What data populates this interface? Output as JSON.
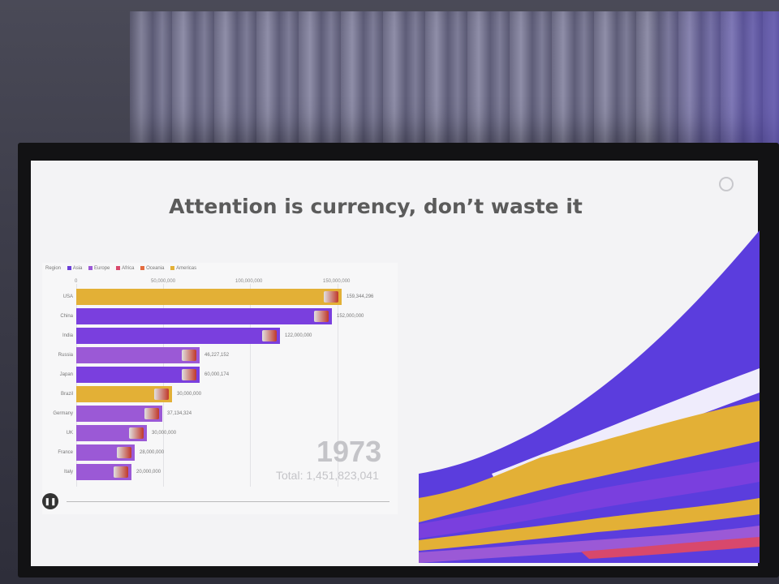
{
  "slide": {
    "title": "Attention is currency, don’t waste it"
  },
  "legend": {
    "label": "Region",
    "items": [
      {
        "name": "Asia",
        "color": "#6a3fd8"
      },
      {
        "name": "Europe",
        "color": "#9b59d6"
      },
      {
        "name": "Africa",
        "color": "#d8486c"
      },
      {
        "name": "Oceania",
        "color": "#e46b3e"
      },
      {
        "name": "Americas",
        "color": "#e3b036"
      }
    ]
  },
  "axis_ticks": [
    "0",
    "50,000,000",
    "100,000,000",
    "150,000,000"
  ],
  "countries": [
    {
      "name": "USA",
      "value": "159,344,296",
      "color": "#e3b036",
      "fraction": 0.86,
      "flag": "us-flag"
    },
    {
      "name": "China",
      "value": "152,000,000",
      "color": "#7a3fde",
      "fraction": 0.83,
      "flag": "cn-flag"
    },
    {
      "name": "India",
      "value": "122,000,000",
      "color": "#7a3fde",
      "fraction": 0.66,
      "flag": "in-flag"
    },
    {
      "name": "Russia",
      "value": "46,227,152",
      "color": "#9b59d6",
      "fraction": 0.4,
      "flag": "ru-flag"
    },
    {
      "name": "Japan",
      "value": "60,000,174",
      "color": "#7a3fde",
      "fraction": 0.4,
      "flag": "jp-flag"
    },
    {
      "name": "Brazil",
      "value": "30,000,000",
      "color": "#e3b036",
      "fraction": 0.31,
      "flag": "br-flag"
    },
    {
      "name": "Germany",
      "value": "37,134,324",
      "color": "#9b59d6",
      "fraction": 0.28,
      "flag": "de-flag"
    },
    {
      "name": "UK",
      "value": "30,000,000",
      "color": "#9b59d6",
      "fraction": 0.23,
      "flag": "uk-flag"
    },
    {
      "name": "France",
      "value": "28,000,000",
      "color": "#9b59d6",
      "fraction": 0.19,
      "flag": "fr-flag"
    },
    {
      "name": "Italy",
      "value": "20,000,000",
      "color": "#9b59d6",
      "fraction": 0.18,
      "flag": "it-flag"
    }
  ],
  "year": "1973",
  "total": "Total: 1,451,823,041",
  "controls": {
    "play_icon": "pause-icon"
  }
}
